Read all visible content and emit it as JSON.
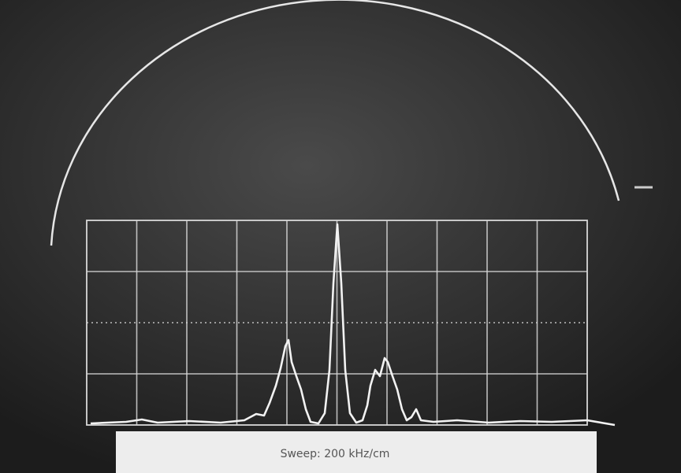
{
  "caption": "Sweep: 200 kHz/cm"
}
